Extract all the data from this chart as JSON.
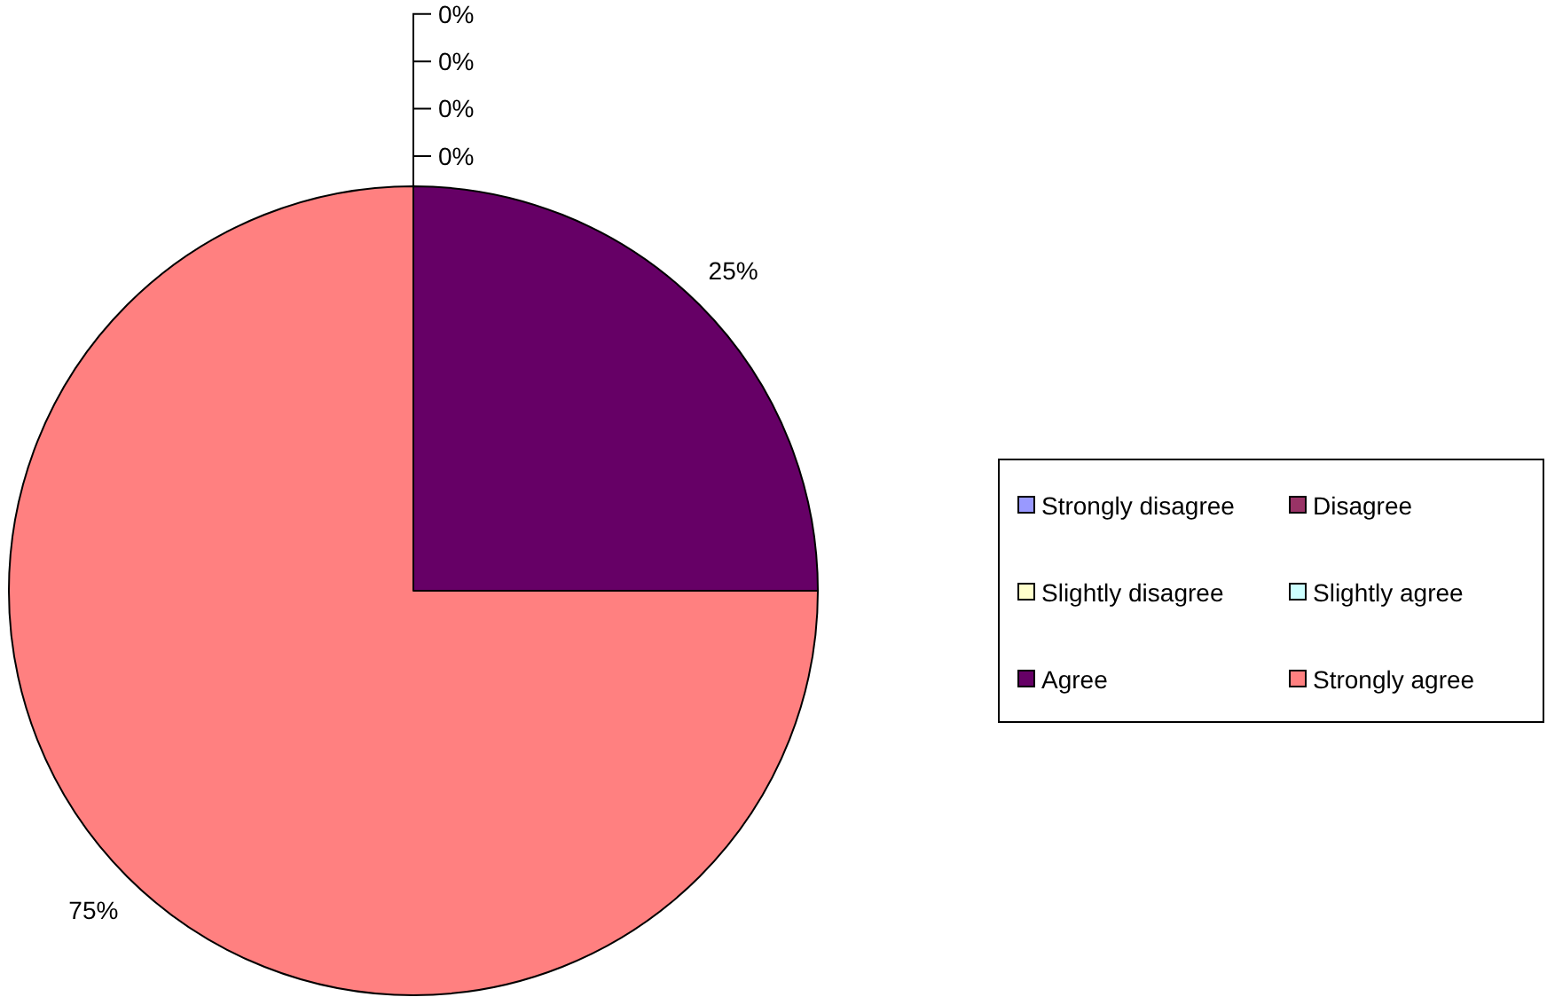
{
  "chart_data": {
    "type": "pie",
    "categories": [
      "Strongly disagree",
      "Disagree",
      "Slightly disagree",
      "Slightly agree",
      "Agree",
      "Strongly agree"
    ],
    "values": [
      0,
      0,
      0,
      0,
      25,
      75
    ],
    "colors": [
      "#9999ff",
      "#993366",
      "#ffffcc",
      "#ccffff",
      "#660066",
      "#ff8080"
    ],
    "value_labels": [
      "0%",
      "0%",
      "0%",
      "0%",
      "25%",
      "75%"
    ],
    "legend": "right"
  }
}
